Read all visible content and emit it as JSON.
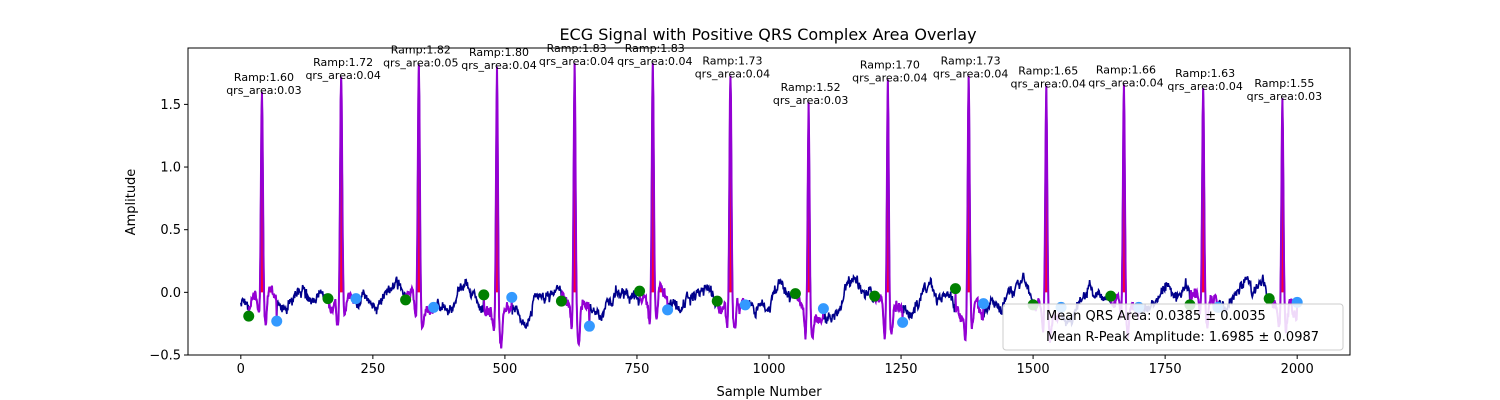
{
  "chart_data": {
    "type": "line",
    "title": "ECG Signal with Positive QRS Complex Area Overlay",
    "xlabel": "Sample Number",
    "ylabel": "Amplitude",
    "xlim": [
      -100,
      2100
    ],
    "ylim": [
      -0.5,
      1.95
    ],
    "xticks": [
      0,
      250,
      500,
      750,
      1000,
      1250,
      1500,
      1750,
      2000
    ],
    "yticks": [
      -0.5,
      0.0,
      0.5,
      1.0,
      1.5
    ],
    "xtick_labels": [
      "0",
      "250",
      "500",
      "750",
      "1000",
      "1250",
      "1500",
      "1750",
      "2000"
    ],
    "ytick_labels": [
      "−0.5",
      "0.0",
      "0.5",
      "1.0",
      "1.5"
    ],
    "colors": {
      "signal": "#00008b",
      "qrs_segment": "#9400d3",
      "qrs_area_fill": "#ff0033",
      "q_marker": "#008000",
      "s_marker": "#3399ff"
    },
    "peaks": [
      {
        "x": 40,
        "ramp": 1.6,
        "qrs_area": 0.03,
        "label_line1": "Ramp:1.60",
        "label_line2": "qrs_area:0.03",
        "q_x": 15,
        "q_y": -0.19,
        "s_x": 68,
        "s_y": -0.23
      },
      {
        "x": 190,
        "ramp": 1.72,
        "qrs_area": 0.04,
        "label_line1": "Ramp:1.72",
        "label_line2": "qrs_area:0.04",
        "q_x": 165,
        "q_y": -0.05,
        "s_x": 218,
        "s_y": -0.05
      },
      {
        "x": 337,
        "ramp": 1.82,
        "qrs_area": 0.05,
        "label_line1": "Ramp:1.82",
        "label_line2": "qrs_area:0.05",
        "q_x": 312,
        "q_y": -0.06,
        "s_x": 365,
        "s_y": -0.12
      },
      {
        "x": 485,
        "ramp": 1.8,
        "qrs_area": 0.04,
        "label_line1": "Ramp:1.80",
        "label_line2": "qrs_area:0.04",
        "q_x": 460,
        "q_y": -0.02,
        "s_x": 513,
        "s_y": -0.04
      },
      {
        "x": 632,
        "ramp": 1.83,
        "qrs_area": 0.04,
        "label_line1": "Ramp:1.83",
        "label_line2": "qrs_area:0.04",
        "q_x": 607,
        "q_y": -0.07,
        "s_x": 660,
        "s_y": -0.27
      },
      {
        "x": 780,
        "ramp": 1.83,
        "qrs_area": 0.04,
        "label_line1": "Ramp:1.83",
        "label_line2": "qrs_area:0.04",
        "q_x": 755,
        "q_y": 0.01,
        "s_x": 808,
        "s_y": -0.14
      },
      {
        "x": 927,
        "ramp": 1.73,
        "qrs_area": 0.04,
        "label_line1": "Ramp:1.73",
        "label_line2": "qrs_area:0.04",
        "q_x": 902,
        "q_y": -0.07,
        "s_x": 955,
        "s_y": -0.1
      },
      {
        "x": 1075,
        "ramp": 1.52,
        "qrs_area": 0.03,
        "label_line1": "Ramp:1.52",
        "label_line2": "qrs_area:0.03",
        "q_x": 1050,
        "q_y": -0.01,
        "s_x": 1103,
        "s_y": -0.13
      },
      {
        "x": 1225,
        "ramp": 1.7,
        "qrs_area": 0.04,
        "label_line1": "Ramp:1.70",
        "label_line2": "qrs_area:0.04",
        "q_x": 1200,
        "q_y": -0.03,
        "s_x": 1253,
        "s_y": -0.24
      },
      {
        "x": 1378,
        "ramp": 1.73,
        "qrs_area": 0.04,
        "label_line1": "Ramp:1.73",
        "label_line2": "qrs_area:0.04",
        "q_x": 1353,
        "q_y": 0.03,
        "s_x": 1406,
        "s_y": -0.09
      },
      {
        "x": 1525,
        "ramp": 1.65,
        "qrs_area": 0.04,
        "label_line1": "Ramp:1.65",
        "label_line2": "qrs_area:0.04",
        "q_x": 1500,
        "q_y": -0.1,
        "s_x": 1553,
        "s_y": -0.12
      },
      {
        "x": 1672,
        "ramp": 1.66,
        "qrs_area": 0.04,
        "label_line1": "Ramp:1.66",
        "label_line2": "qrs_area:0.04",
        "q_x": 1647,
        "q_y": -0.03,
        "s_x": 1700,
        "s_y": -0.12
      },
      {
        "x": 1822,
        "ramp": 1.63,
        "qrs_area": 0.04,
        "label_line1": "Ramp:1.63",
        "label_line2": "qrs_area:0.04",
        "q_x": 1797,
        "q_y": -0.1,
        "s_x": 1850,
        "s_y": -0.12
      },
      {
        "x": 1972,
        "ramp": 1.55,
        "qrs_area": 0.03,
        "label_line1": "Ramp:1.55",
        "label_line2": "qrs_area:0.03",
        "q_x": 1947,
        "q_y": -0.05,
        "s_x": 2000,
        "s_y": -0.08
      }
    ],
    "legend": {
      "placement": "lower-right",
      "entries": [
        "Mean QRS Area: 0.0385 ± 0.0035",
        "Mean R-Peak Amplitude: 1.6985 ± 0.0987"
      ]
    }
  }
}
